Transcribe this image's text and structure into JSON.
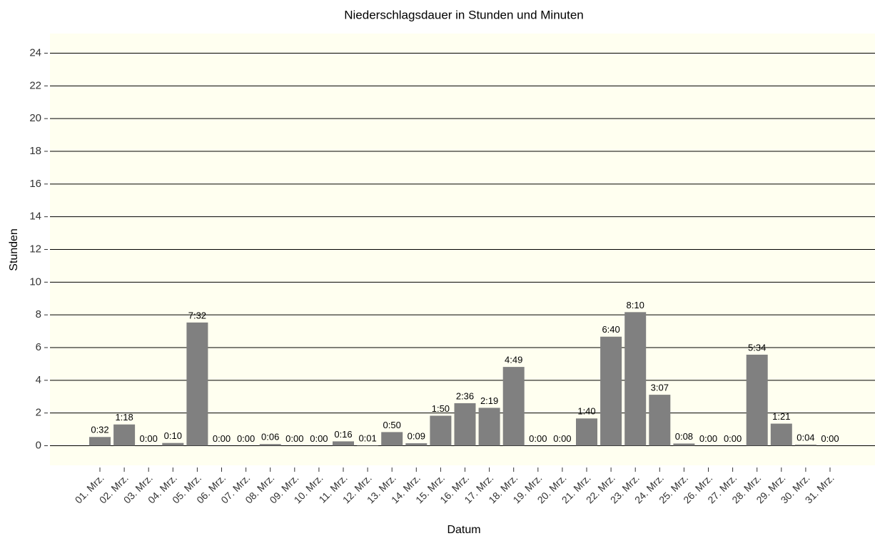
{
  "chart_data": {
    "type": "bar",
    "title": "Niederschlagsdauer in Stunden und Minuten",
    "x_label": "Datum",
    "y_label": "Stunden",
    "categories": [
      "01. Mrz.",
      "02. Mrz.",
      "03. Mrz.",
      "04. Mrz.",
      "05. Mrz.",
      "06. Mrz.",
      "07. Mrz.",
      "08. Mrz.",
      "09. Mrz.",
      "10. Mrz.",
      "11. Mrz.",
      "12. Mrz.",
      "13. Mrz.",
      "14. Mrz.",
      "15. Mrz.",
      "16. Mrz.",
      "17. Mrz.",
      "18. Mrz.",
      "19. Mrz.",
      "20. Mrz.",
      "21. Mrz.",
      "22. Mrz.",
      "23. Mrz.",
      "24. Mrz.",
      "25. Mrz.",
      "26. Mrz.",
      "27. Mrz.",
      "28. Mrz.",
      "29. Mrz.",
      "30. Mrz.",
      "31. Mrz."
    ],
    "values": [
      0.5333,
      1.3,
      0,
      0.1667,
      7.5333,
      0,
      0,
      0.1,
      0,
      0,
      0.2667,
      0.0167,
      0.8333,
      0.15,
      1.8333,
      2.6,
      2.3167,
      4.8167,
      0,
      0,
      1.6667,
      6.6667,
      8.1667,
      3.1167,
      0.1333,
      0,
      0,
      5.5667,
      1.35,
      0.0667,
      0
    ],
    "value_labels": [
      "0:32",
      "1:18",
      "0:00",
      "0:10",
      "7:32",
      "0:00",
      "0:00",
      "0:06",
      "0:00",
      "0:00",
      "0:16",
      "0:01",
      "0:50",
      "0:09",
      "1:50",
      "2:36",
      "2:19",
      "4:49",
      "0:00",
      "0:00",
      "1:40",
      "6:40",
      "8:10",
      "3:07",
      "0:08",
      "0:00",
      "0:00",
      "5:34",
      "1:21",
      "0:04",
      "0:00"
    ],
    "color": "#808080",
    "background": "#fffff0",
    "ylim": [
      -1.2,
      25.2
    ],
    "yticks": [
      0,
      2,
      4,
      6,
      8,
      10,
      12,
      14,
      16,
      18,
      20,
      22,
      24
    ],
    "grid": true
  }
}
